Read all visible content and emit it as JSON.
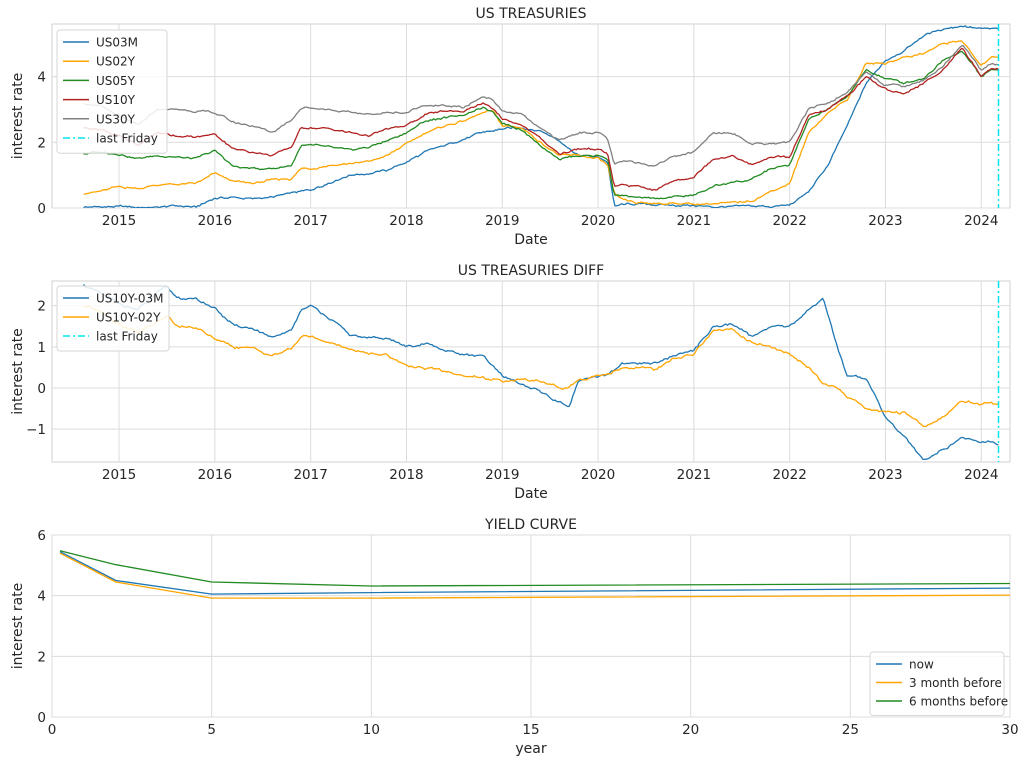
{
  "chart_data": [
    {
      "type": "line",
      "title": "US TREASURIES",
      "xlabel": "Date",
      "ylabel": "interest rate",
      "xlim": [
        2014.3,
        2024.3
      ],
      "ylim": [
        0,
        5.6
      ],
      "xticks": [
        "2015",
        "2016",
        "2017",
        "2018",
        "2019",
        "2020",
        "2021",
        "2022",
        "2023",
        "2024"
      ],
      "yticks": [
        "0",
        "2",
        "4"
      ],
      "grid": true,
      "legend_position": "upper-left",
      "x": [
        2014.63,
        2014.8,
        2015.0,
        2015.2,
        2015.4,
        2015.6,
        2015.8,
        2016.0,
        2016.2,
        2016.4,
        2016.6,
        2016.8,
        2016.9,
        2017.0,
        2017.2,
        2017.4,
        2017.6,
        2017.8,
        2018.0,
        2018.2,
        2018.4,
        2018.6,
        2018.8,
        2018.9,
        2019.0,
        2019.2,
        2019.4,
        2019.6,
        2019.8,
        2020.0,
        2020.1,
        2020.17,
        2020.25,
        2020.4,
        2020.6,
        2020.8,
        2021.0,
        2021.2,
        2021.4,
        2021.6,
        2021.8,
        2022.0,
        2022.2,
        2022.4,
        2022.6,
        2022.8,
        2023.0,
        2023.2,
        2023.4,
        2023.6,
        2023.8,
        2024.0,
        2024.1,
        2024.18
      ],
      "series": [
        {
          "name": "US03M",
          "color": "#1f77b4",
          "values": [
            0.03,
            0.03,
            0.04,
            0.02,
            0.02,
            0.07,
            0.02,
            0.3,
            0.32,
            0.28,
            0.33,
            0.45,
            0.5,
            0.55,
            0.78,
            1.0,
            1.05,
            1.15,
            1.4,
            1.7,
            1.9,
            2.1,
            2.3,
            2.35,
            2.4,
            2.45,
            2.35,
            2.05,
            1.6,
            1.55,
            1.4,
            0.05,
            0.1,
            0.12,
            0.1,
            0.08,
            0.08,
            0.03,
            0.04,
            0.05,
            0.05,
            0.08,
            0.5,
            1.3,
            2.5,
            3.8,
            4.5,
            4.8,
            5.25,
            5.45,
            5.55,
            5.45,
            5.45,
            5.45
          ]
        },
        {
          "name": "US02Y",
          "color": "#ffa500",
          "values": [
            0.45,
            0.5,
            0.65,
            0.6,
            0.7,
            0.72,
            0.74,
            1.05,
            0.8,
            0.75,
            0.85,
            0.9,
            1.2,
            1.2,
            1.3,
            1.35,
            1.4,
            1.6,
            1.95,
            2.3,
            2.5,
            2.65,
            2.9,
            2.95,
            2.5,
            2.45,
            2.0,
            1.6,
            1.6,
            1.5,
            1.3,
            0.4,
            0.25,
            0.15,
            0.14,
            0.15,
            0.12,
            0.13,
            0.15,
            0.22,
            0.5,
            0.75,
            2.3,
            2.9,
            3.3,
            4.4,
            4.4,
            4.6,
            4.7,
            5.0,
            5.1,
            4.3,
            4.6,
            4.6
          ]
        },
        {
          "name": "US05Y",
          "color": "#228b22",
          "values": [
            1.65,
            1.7,
            1.65,
            1.5,
            1.6,
            1.55,
            1.5,
            1.75,
            1.25,
            1.2,
            1.2,
            1.3,
            1.9,
            1.9,
            1.85,
            1.75,
            1.85,
            2.05,
            2.3,
            2.65,
            2.75,
            2.85,
            3.05,
            2.9,
            2.6,
            2.4,
            1.9,
            1.5,
            1.6,
            1.6,
            1.5,
            0.4,
            0.38,
            0.3,
            0.28,
            0.35,
            0.38,
            0.65,
            0.8,
            0.85,
            1.2,
            1.3,
            2.7,
            3.0,
            3.4,
            4.2,
            3.95,
            3.8,
            3.95,
            4.5,
            4.8,
            4.0,
            4.2,
            4.2
          ]
        },
        {
          "name": "US10Y",
          "color": "#b22222",
          "values": [
            2.45,
            2.4,
            2.2,
            1.9,
            2.3,
            2.2,
            2.15,
            2.25,
            1.8,
            1.7,
            1.6,
            1.85,
            2.45,
            2.45,
            2.4,
            2.3,
            2.2,
            2.4,
            2.5,
            2.85,
            2.95,
            2.95,
            3.2,
            3.0,
            2.7,
            2.55,
            2.1,
            1.65,
            1.8,
            1.8,
            1.65,
            0.65,
            0.7,
            0.65,
            0.55,
            0.85,
            0.95,
            1.5,
            1.6,
            1.3,
            1.55,
            1.55,
            2.8,
            3.0,
            3.4,
            4.0,
            3.6,
            3.5,
            3.8,
            4.2,
            4.9,
            4.0,
            4.25,
            4.25
          ]
        },
        {
          "name": "US30Y",
          "color": "#808080",
          "values": [
            3.2,
            3.1,
            2.8,
            2.5,
            3.0,
            3.0,
            2.95,
            2.9,
            2.6,
            2.5,
            2.3,
            2.7,
            3.05,
            3.05,
            3.0,
            2.9,
            2.85,
            2.9,
            2.9,
            3.15,
            3.1,
            3.05,
            3.4,
            3.3,
            2.95,
            2.85,
            2.4,
            2.05,
            2.3,
            2.3,
            2.1,
            1.3,
            1.4,
            1.4,
            1.3,
            1.6,
            1.7,
            2.3,
            2.3,
            1.95,
            1.95,
            2.0,
            3.0,
            3.2,
            3.5,
            4.15,
            3.75,
            3.7,
            3.9,
            4.3,
            5.0,
            4.2,
            4.4,
            4.35
          ]
        }
      ],
      "marker_line": {
        "name": "last Friday",
        "x": 2024.18,
        "color": "#00e5ee"
      }
    },
    {
      "type": "line",
      "title": "US TREASURIES DIFF",
      "xlabel": "Date",
      "ylabel": "interest rate",
      "xlim": [
        2014.3,
        2024.3
      ],
      "ylim": [
        -1.8,
        2.6
      ],
      "xticks": [
        "2015",
        "2016",
        "2017",
        "2018",
        "2019",
        "2020",
        "2021",
        "2022",
        "2023",
        "2024"
      ],
      "yticks": [
        "−1",
        "0",
        "1",
        "2"
      ],
      "grid": true,
      "legend_position": "upper-left",
      "x": [
        2014.63,
        2014.8,
        2015.0,
        2015.2,
        2015.4,
        2015.5,
        2015.6,
        2015.8,
        2016.0,
        2016.2,
        2016.4,
        2016.6,
        2016.8,
        2016.9,
        2017.0,
        2017.2,
        2017.4,
        2017.6,
        2017.8,
        2018.0,
        2018.2,
        2018.4,
        2018.6,
        2018.8,
        2019.0,
        2019.2,
        2019.4,
        2019.6,
        2019.7,
        2019.8,
        2020.0,
        2020.1,
        2020.25,
        2020.4,
        2020.6,
        2020.8,
        2021.0,
        2021.2,
        2021.4,
        2021.6,
        2021.8,
        2022.0,
        2022.2,
        2022.35,
        2022.5,
        2022.6,
        2022.8,
        2023.0,
        2023.2,
        2023.4,
        2023.6,
        2023.8,
        2024.0,
        2024.1,
        2024.18
      ],
      "series": [
        {
          "name": "US10Y-03M",
          "color": "#1f77b4",
          "values": [
            2.5,
            2.3,
            2.05,
            1.9,
            2.3,
            2.45,
            2.2,
            2.15,
            1.95,
            1.5,
            1.45,
            1.2,
            1.4,
            1.9,
            2.0,
            1.7,
            1.3,
            1.2,
            1.2,
            1.0,
            1.1,
            0.9,
            0.8,
            0.75,
            0.3,
            0.1,
            -0.1,
            -0.35,
            -0.45,
            0.2,
            0.25,
            0.3,
            0.6,
            0.55,
            0.6,
            0.8,
            0.9,
            1.5,
            1.55,
            1.25,
            1.5,
            1.5,
            1.9,
            2.2,
            1.0,
            0.3,
            0.2,
            -0.7,
            -1.2,
            -1.75,
            -1.5,
            -1.2,
            -1.3,
            -1.3,
            -1.35
          ]
        },
        {
          "name": "US10Y-02Y",
          "color": "#ffa500",
          "values": [
            2.0,
            1.9,
            1.55,
            1.35,
            1.6,
            1.75,
            1.5,
            1.45,
            1.2,
            1.0,
            0.95,
            0.8,
            0.95,
            1.25,
            1.25,
            1.1,
            0.95,
            0.85,
            0.8,
            0.55,
            0.5,
            0.4,
            0.3,
            0.25,
            0.15,
            0.2,
            0.15,
            0.0,
            0.05,
            0.2,
            0.3,
            0.35,
            0.5,
            0.5,
            0.45,
            0.7,
            0.83,
            1.38,
            1.45,
            1.1,
            1.0,
            0.8,
            0.5,
            0.1,
            0.0,
            -0.2,
            -0.5,
            -0.6,
            -0.6,
            -0.95,
            -0.7,
            -0.3,
            -0.4,
            -0.35,
            -0.4
          ]
        }
      ],
      "marker_line": {
        "name": "last Friday",
        "x": 2024.18,
        "color": "#00e5ee"
      }
    },
    {
      "type": "line",
      "title": "YIELD CURVE",
      "xlabel": "year",
      "ylabel": "interest rate",
      "xlim": [
        0,
        30
      ],
      "ylim": [
        0,
        6
      ],
      "xticks": [
        "0",
        "5",
        "10",
        "15",
        "20",
        "25",
        "30"
      ],
      "yticks": [
        "0",
        "2",
        "4",
        "6"
      ],
      "grid": true,
      "legend_position": "lower-right",
      "x": [
        0.25,
        2,
        5,
        10,
        30
      ],
      "series": [
        {
          "name": "now",
          "color": "#1f77b4",
          "values": [
            5.45,
            4.5,
            4.05,
            4.1,
            4.25
          ]
        },
        {
          "name": "3 month before",
          "color": "#ffa500",
          "values": [
            5.4,
            4.45,
            3.92,
            3.92,
            4.02
          ]
        },
        {
          "name": "6 months before",
          "color": "#228b22",
          "values": [
            5.48,
            5.02,
            4.45,
            4.32,
            4.4
          ]
        }
      ]
    }
  ]
}
